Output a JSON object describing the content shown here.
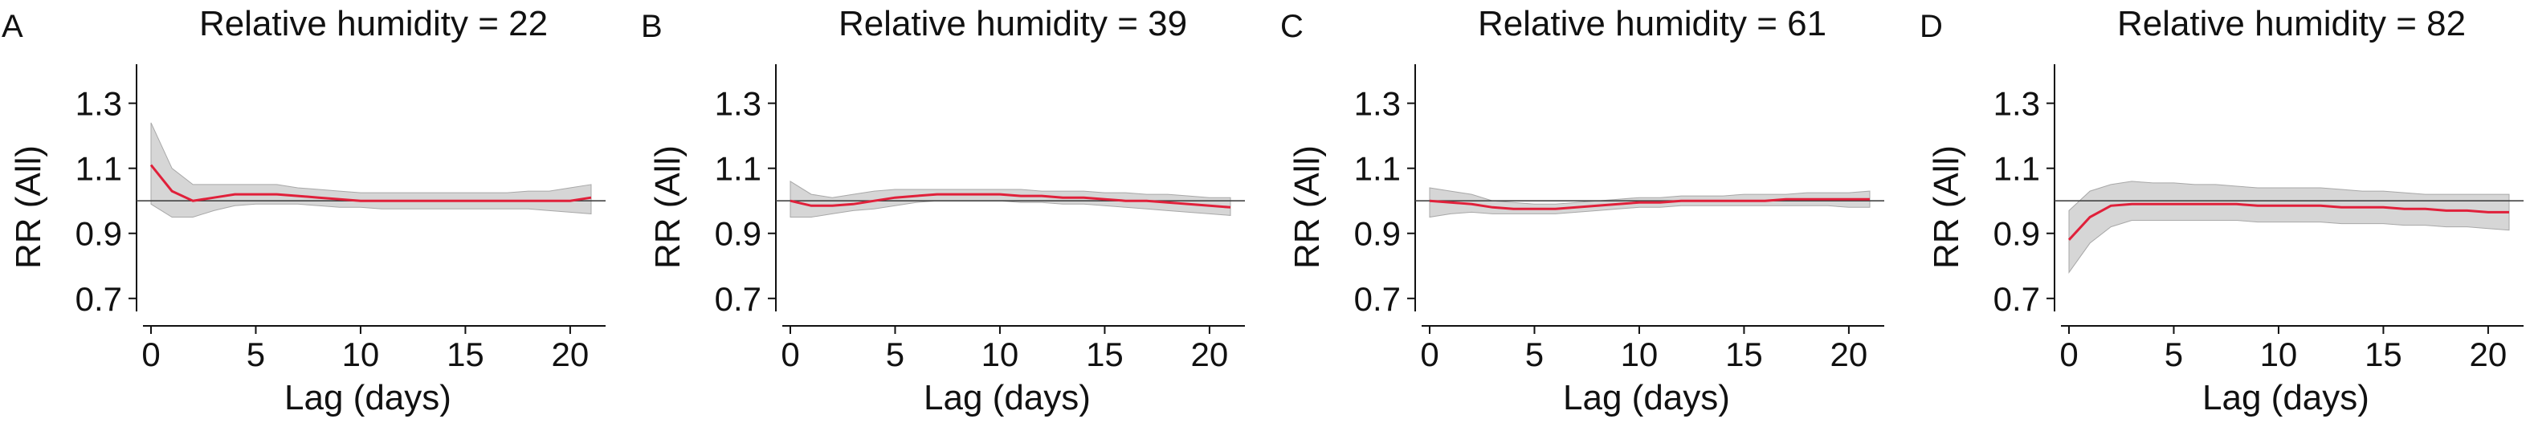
{
  "chart_data": [
    {
      "type": "line",
      "panel_letter": "A",
      "title": "Relative humidity = 22",
      "xlabel": "Lag (days)",
      "ylabel": "RR (All)",
      "xlim": [
        0,
        21
      ],
      "ylim": [
        0.66,
        1.42
      ],
      "xticks": [
        "0",
        "5",
        "10",
        "15",
        "20"
      ],
      "yticks": [
        "0.7",
        "0.9",
        "1.1",
        "1.3"
      ],
      "reference_line": 1.0,
      "grid": false,
      "colors": {
        "line": "#e0203a",
        "band": "#c8c8c8",
        "reference": "#444444"
      },
      "x": [
        0,
        1,
        2,
        3,
        4,
        5,
        6,
        7,
        8,
        9,
        10,
        11,
        12,
        13,
        14,
        15,
        16,
        17,
        18,
        19,
        20,
        21
      ],
      "y": [
        1.11,
        1.03,
        1.0,
        1.01,
        1.02,
        1.02,
        1.02,
        1.015,
        1.01,
        1.005,
        1.0,
        1.0,
        1.0,
        1.0,
        1.0,
        1.0,
        1.0,
        1.0,
        1.0,
        1.0,
        1.0,
        1.01
      ],
      "ci_upper": [
        1.24,
        1.1,
        1.05,
        1.05,
        1.05,
        1.05,
        1.05,
        1.04,
        1.035,
        1.03,
        1.025,
        1.025,
        1.025,
        1.025,
        1.025,
        1.025,
        1.025,
        1.025,
        1.03,
        1.03,
        1.04,
        1.05
      ],
      "ci_lower": [
        0.99,
        0.95,
        0.95,
        0.97,
        0.985,
        0.99,
        0.99,
        0.99,
        0.985,
        0.98,
        0.98,
        0.975,
        0.975,
        0.975,
        0.975,
        0.975,
        0.975,
        0.975,
        0.975,
        0.97,
        0.965,
        0.96
      ]
    },
    {
      "type": "line",
      "panel_letter": "B",
      "title": "Relative humidity = 39",
      "xlabel": "Lag (days)",
      "ylabel": "RR (All)",
      "xlim": [
        0,
        21
      ],
      "ylim": [
        0.66,
        1.42
      ],
      "xticks": [
        "0",
        "5",
        "10",
        "15",
        "20"
      ],
      "yticks": [
        "0.7",
        "0.9",
        "1.1",
        "1.3"
      ],
      "reference_line": 1.0,
      "grid": false,
      "colors": {
        "line": "#e0203a",
        "band": "#c8c8c8",
        "reference": "#444444"
      },
      "x": [
        0,
        1,
        2,
        3,
        4,
        5,
        6,
        7,
        8,
        9,
        10,
        11,
        12,
        13,
        14,
        15,
        16,
        17,
        18,
        19,
        20,
        21
      ],
      "y": [
        1.0,
        0.985,
        0.985,
        0.99,
        1.0,
        1.01,
        1.015,
        1.02,
        1.02,
        1.02,
        1.02,
        1.015,
        1.015,
        1.01,
        1.01,
        1.005,
        1.0,
        1.0,
        0.995,
        0.99,
        0.985,
        0.98
      ],
      "ci_upper": [
        1.06,
        1.02,
        1.01,
        1.02,
        1.03,
        1.035,
        1.035,
        1.035,
        1.035,
        1.035,
        1.035,
        1.035,
        1.03,
        1.03,
        1.03,
        1.025,
        1.025,
        1.02,
        1.02,
        1.015,
        1.01,
        1.01
      ],
      "ci_lower": [
        0.95,
        0.95,
        0.96,
        0.97,
        0.975,
        0.985,
        0.995,
        1.0,
        1.0,
        1.0,
        1.0,
        0.995,
        0.995,
        0.99,
        0.99,
        0.985,
        0.98,
        0.975,
        0.97,
        0.965,
        0.96,
        0.955
      ]
    },
    {
      "type": "line",
      "panel_letter": "C",
      "title": "Relative humidity = 61",
      "xlabel": "Lag (days)",
      "ylabel": "RR (All)",
      "xlim": [
        0,
        21
      ],
      "ylim": [
        0.66,
        1.42
      ],
      "xticks": [
        "0",
        "5",
        "10",
        "15",
        "20"
      ],
      "yticks": [
        "0.7",
        "0.9",
        "1.1",
        "1.3"
      ],
      "reference_line": 1.0,
      "grid": false,
      "colors": {
        "line": "#e0203a",
        "band": "#c8c8c8",
        "reference": "#444444"
      },
      "x": [
        0,
        1,
        2,
        3,
        4,
        5,
        6,
        7,
        8,
        9,
        10,
        11,
        12,
        13,
        14,
        15,
        16,
        17,
        18,
        19,
        20,
        21
      ],
      "y": [
        1.0,
        0.995,
        0.99,
        0.98,
        0.975,
        0.975,
        0.975,
        0.98,
        0.985,
        0.99,
        0.995,
        0.995,
        1.0,
        1.0,
        1.0,
        1.0,
        1.0,
        1.005,
        1.005,
        1.005,
        1.005,
        1.005
      ],
      "ci_upper": [
        1.04,
        1.03,
        1.02,
        1.0,
        0.995,
        0.99,
        0.99,
        0.995,
        1.0,
        1.005,
        1.01,
        1.01,
        1.015,
        1.015,
        1.015,
        1.02,
        1.02,
        1.02,
        1.025,
        1.025,
        1.025,
        1.03
      ],
      "ci_lower": [
        0.95,
        0.96,
        0.965,
        0.96,
        0.96,
        0.96,
        0.96,
        0.965,
        0.97,
        0.975,
        0.98,
        0.98,
        0.985,
        0.985,
        0.985,
        0.985,
        0.985,
        0.985,
        0.985,
        0.985,
        0.98,
        0.98
      ]
    },
    {
      "type": "line",
      "panel_letter": "D",
      "title": "Relative humidity = 82",
      "xlabel": "Lag (days)",
      "ylabel": "RR (All)",
      "xlim": [
        0,
        21
      ],
      "ylim": [
        0.66,
        1.42
      ],
      "xticks": [
        "0",
        "5",
        "10",
        "15",
        "20"
      ],
      "yticks": [
        "0.7",
        "0.9",
        "1.1",
        "1.3"
      ],
      "reference_line": 1.0,
      "grid": false,
      "colors": {
        "line": "#e0203a",
        "band": "#c8c8c8",
        "reference": "#444444"
      },
      "x": [
        0,
        1,
        2,
        3,
        4,
        5,
        6,
        7,
        8,
        9,
        10,
        11,
        12,
        13,
        14,
        15,
        16,
        17,
        18,
        19,
        20,
        21
      ],
      "y": [
        0.88,
        0.95,
        0.985,
        0.99,
        0.99,
        0.99,
        0.99,
        0.99,
        0.99,
        0.985,
        0.985,
        0.985,
        0.985,
        0.98,
        0.98,
        0.98,
        0.975,
        0.975,
        0.97,
        0.97,
        0.965,
        0.965
      ],
      "ci_upper": [
        0.97,
        1.03,
        1.05,
        1.06,
        1.055,
        1.055,
        1.05,
        1.05,
        1.045,
        1.04,
        1.04,
        1.04,
        1.04,
        1.035,
        1.03,
        1.03,
        1.025,
        1.02,
        1.02,
        1.02,
        1.02,
        1.02
      ],
      "ci_lower": [
        0.78,
        0.87,
        0.92,
        0.94,
        0.94,
        0.94,
        0.94,
        0.94,
        0.94,
        0.935,
        0.935,
        0.935,
        0.935,
        0.93,
        0.93,
        0.93,
        0.925,
        0.925,
        0.92,
        0.92,
        0.915,
        0.91
      ]
    }
  ]
}
